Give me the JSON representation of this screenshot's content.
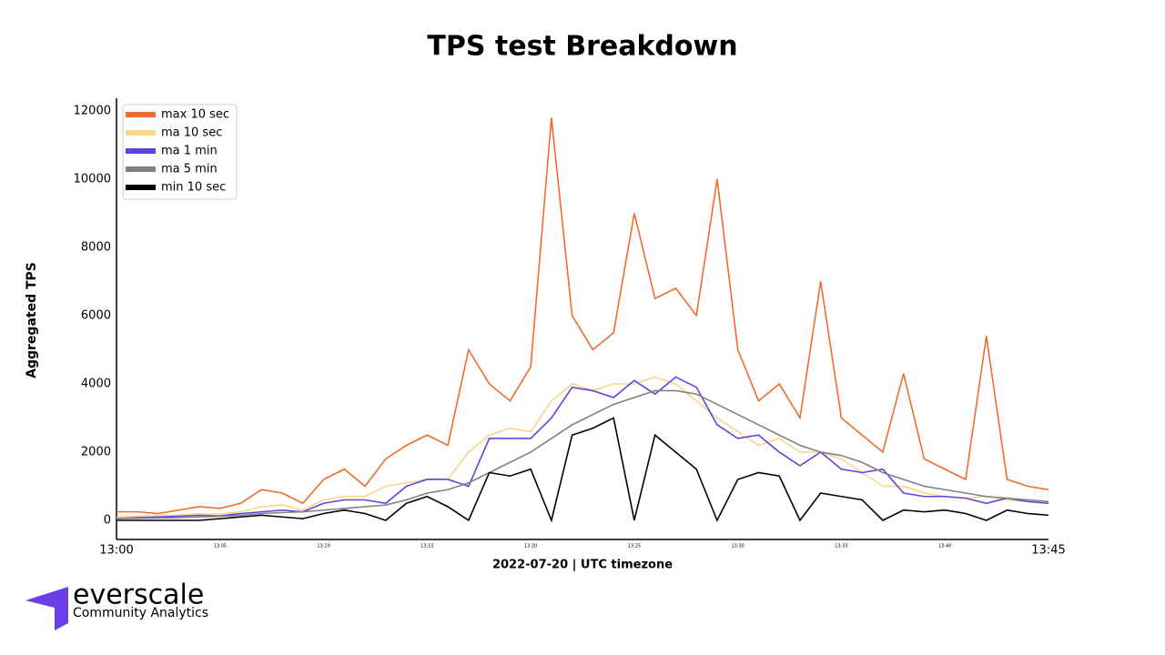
{
  "chart_data": {
    "type": "line",
    "title": "TPS test Breakdown",
    "x_label": "2022-07-20 | UTC timezone",
    "y_label": "Aggregated TPS",
    "x": [
      "13:00",
      "13:01",
      "13:02",
      "13:03",
      "13:04",
      "13:05",
      "13:06",
      "13:07",
      "13:08",
      "13:09",
      "13:10",
      "13:11",
      "13:12",
      "13:13",
      "13:14",
      "13:15",
      "13:16",
      "13:17",
      "13:18",
      "13:19",
      "13:20",
      "13:21",
      "13:22",
      "13:23",
      "13:24",
      "13:25",
      "13:26",
      "13:27",
      "13:28",
      "13:29",
      "13:30",
      "13:31",
      "13:32",
      "13:33",
      "13:34",
      "13:35",
      "13:36",
      "13:37",
      "13:38",
      "13:39",
      "13:40",
      "13:41",
      "13:42",
      "13:43",
      "13:44",
      "13:45"
    ],
    "xticks": [
      "13:00",
      "13:05",
      "13:10",
      "13:15",
      "13:20",
      "13:25",
      "13:30",
      "13:35",
      "13:40",
      "13:45"
    ],
    "ylim": [
      -560,
      12370
    ],
    "yticks": [
      0,
      2000,
      4000,
      6000,
      8000,
      10000,
      12000
    ],
    "legend": "upper-left",
    "grid": false,
    "series": [
      {
        "name": "max 10 sec",
        "color": "#f26b2a",
        "values": [
          250,
          250,
          200,
          300,
          400,
          350,
          500,
          900,
          800,
          500,
          1200,
          1500,
          1000,
          1800,
          2200,
          2500,
          2200,
          5000,
          4000,
          3500,
          4500,
          11800,
          6000,
          5000,
          5500,
          9000,
          6500,
          6800,
          6000,
          10000,
          5000,
          3500,
          4000,
          3000,
          7000,
          3000,
          2500,
          2000,
          4300,
          1800,
          1500,
          1200,
          5400,
          1200,
          1000,
          900
        ]
      },
      {
        "name": "ma 10 sec",
        "color": "#fad58a",
        "values": [
          100,
          120,
          150,
          150,
          200,
          180,
          250,
          400,
          450,
          300,
          600,
          700,
          700,
          1000,
          1100,
          1200,
          1200,
          2000,
          2500,
          2700,
          2600,
          3500,
          4000,
          3800,
          4000,
          4000,
          4200,
          4000,
          3500,
          3000,
          2600,
          2200,
          2400,
          2000,
          2000,
          1800,
          1400,
          1000,
          1000,
          800,
          700,
          650,
          700,
          600,
          550,
          500
        ]
      },
      {
        "name": "ma 1 min",
        "color": "#5b45e0",
        "values": [
          50,
          80,
          100,
          120,
          150,
          130,
          200,
          250,
          300,
          250,
          500,
          600,
          600,
          500,
          1000,
          1200,
          1200,
          1000,
          2400,
          2400,
          2400,
          3000,
          3900,
          3800,
          3600,
          4100,
          3700,
          4200,
          3900,
          2800,
          2400,
          2500,
          2000,
          1600,
          2000,
          1500,
          1400,
          1500,
          800,
          700,
          700,
          650,
          500,
          650,
          550,
          500
        ]
      },
      {
        "name": "ma 5 min",
        "color": "#808080",
        "values": [
          50,
          60,
          70,
          80,
          100,
          120,
          150,
          200,
          230,
          250,
          300,
          350,
          400,
          450,
          600,
          800,
          900,
          1100,
          1400,
          1700,
          2000,
          2400,
          2800,
          3100,
          3400,
          3600,
          3800,
          3800,
          3700,
          3400,
          3100,
          2800,
          2500,
          2200,
          2000,
          1900,
          1700,
          1400,
          1200,
          1000,
          900,
          800,
          700,
          650,
          600,
          550
        ]
      },
      {
        "name": "min 10 sec",
        "color": "#000000",
        "values": [
          0,
          0,
          0,
          0,
          0,
          50,
          100,
          150,
          100,
          50,
          200,
          300,
          200,
          0,
          500,
          700,
          400,
          0,
          1400,
          1300,
          1500,
          0,
          2500,
          2700,
          3000,
          0,
          2500,
          2000,
          1500,
          0,
          1200,
          1400,
          1300,
          0,
          800,
          700,
          600,
          0,
          300,
          250,
          300,
          200,
          0,
          300,
          200,
          150
        ]
      }
    ]
  },
  "logo": {
    "name": "everscale",
    "tagline": "Community Analytics"
  }
}
